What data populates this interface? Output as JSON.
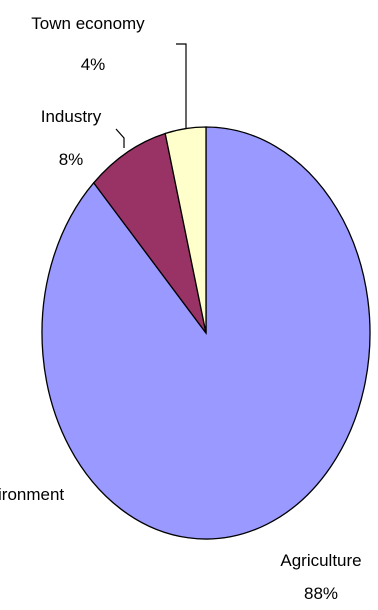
{
  "chart_data": {
    "type": "pie",
    "title": "",
    "slices": [
      {
        "label": "Agriculture",
        "value": 88,
        "value_label": "88%",
        "color": "#9999ff"
      },
      {
        "label": "Industry",
        "value": 8,
        "value_label": "8%",
        "color": "#993366"
      },
      {
        "label": "Town economy",
        "value": 4,
        "value_label": "4%",
        "color": "#ffffcc"
      },
      {
        "label": "ironment",
        "value": 0,
        "value_label": "",
        "color": "#ffffff"
      }
    ]
  }
}
